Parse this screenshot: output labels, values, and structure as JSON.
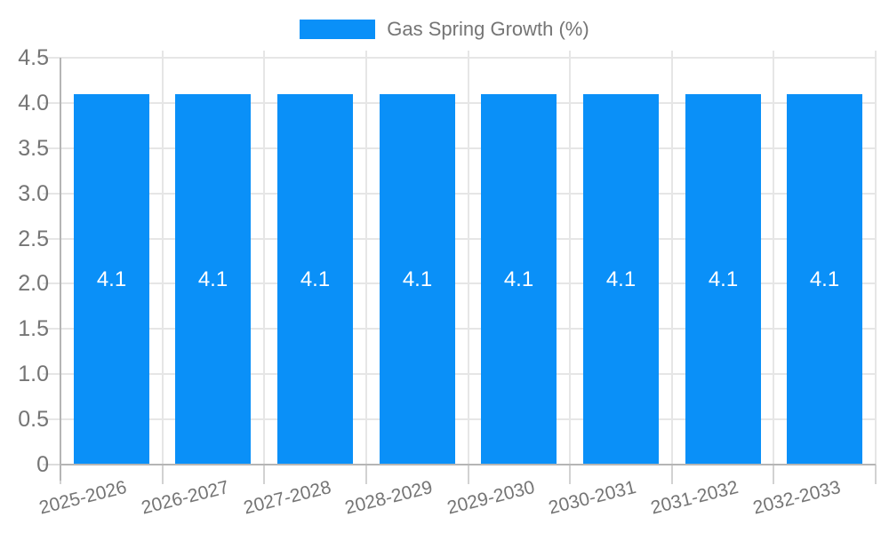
{
  "chart_data": {
    "type": "bar",
    "title": "",
    "legend": {
      "label": "Gas Spring Growth (%)",
      "position": "top"
    },
    "categories": [
      "2025-2026",
      "2026-2027",
      "2027-2028",
      "2028-2029",
      "2029-2030",
      "2030-2031",
      "2031-2032",
      "2032-2033"
    ],
    "series": [
      {
        "name": "Gas Spring Growth (%)",
        "values": [
          4.1,
          4.1,
          4.1,
          4.1,
          4.1,
          4.1,
          4.1,
          4.1
        ],
        "value_labels": [
          "4.1",
          "4.1",
          "4.1",
          "4.1",
          "4.1",
          "4.1",
          "4.1",
          "4.1"
        ]
      }
    ],
    "xlabel": "",
    "ylabel": "",
    "ylim": [
      0,
      4.5
    ],
    "yticks": [
      {
        "value": 0,
        "label": "0"
      },
      {
        "value": 0.5,
        "label": "0.5"
      },
      {
        "value": 1,
        "label": "1.0"
      },
      {
        "value": 1.5,
        "label": "1.5"
      },
      {
        "value": 2,
        "label": "2.0"
      },
      {
        "value": 2.5,
        "label": "2.5"
      },
      {
        "value": 3,
        "label": "3.0"
      },
      {
        "value": 3.5,
        "label": "3.5"
      },
      {
        "value": 4,
        "label": "4.0"
      },
      {
        "value": 4.5,
        "label": "4.5"
      }
    ],
    "grid": true,
    "colors": {
      "bar": "#0A90F8",
      "axis_text": "#757575",
      "bar_value_text": "#ffffff",
      "gridline": "#e6e6e6",
      "axis_line": "#b5b5b5",
      "background": "#ffffff"
    }
  }
}
